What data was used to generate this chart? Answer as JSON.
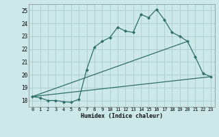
{
  "xlabel": "Humidex (Indice chaleur)",
  "background_color": "#cce8e8",
  "grid_color": "#aacccc",
  "line_color": "#2d6e68",
  "xlim": [
    -0.5,
    23.5
  ],
  "ylim": [
    17.5,
    25.5
  ],
  "yticks": [
    18,
    19,
    20,
    21,
    22,
    23,
    24,
    25
  ],
  "xticks": [
    0,
    1,
    2,
    3,
    4,
    5,
    6,
    7,
    8,
    9,
    10,
    11,
    12,
    13,
    14,
    15,
    16,
    17,
    18,
    19,
    20,
    21,
    22,
    23
  ],
  "line1_x": [
    0,
    1,
    2,
    3,
    4,
    5,
    6,
    7,
    8,
    9,
    10,
    11,
    12,
    13,
    14,
    15,
    16,
    17,
    18,
    19,
    20,
    21,
    22,
    23
  ],
  "line1_y": [
    18.3,
    18.2,
    18.0,
    18.0,
    17.9,
    17.85,
    18.1,
    20.4,
    22.15,
    22.6,
    22.9,
    23.7,
    23.4,
    23.3,
    24.7,
    24.45,
    25.1,
    24.3,
    23.3,
    23.0,
    22.6,
    21.4,
    20.1,
    19.85
  ],
  "line2_x": [
    0,
    20
  ],
  "line2_y": [
    18.3,
    22.6
  ],
  "line3_x": [
    0,
    23
  ],
  "line3_y": [
    18.3,
    19.85
  ]
}
